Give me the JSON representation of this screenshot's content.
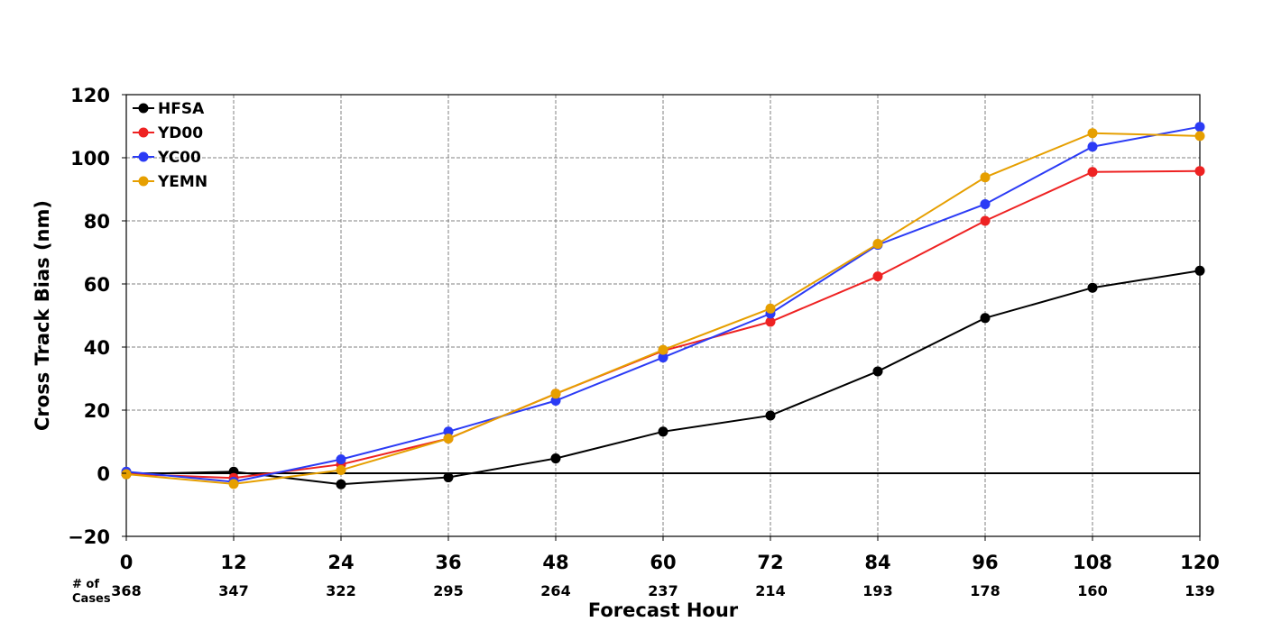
{
  "chart_data": {
    "type": "line",
    "x": [
      0,
      12,
      24,
      36,
      48,
      60,
      72,
      84,
      96,
      108,
      120
    ],
    "xlabel": "Forecast Hour",
    "ylabel": "Cross Track Bias (nm)",
    "xlim": [
      0,
      120
    ],
    "ylim": [
      -20,
      120
    ],
    "yticks": [
      -20,
      0,
      20,
      40,
      60,
      80,
      100,
      120
    ],
    "ytick_labels": [
      "−20",
      "0",
      "20",
      "40",
      "60",
      "80",
      "100",
      "120"
    ],
    "grid": true,
    "legend_position": "top-left",
    "series": [
      {
        "name": "HFSA",
        "color": "#000000",
        "values": [
          -0.3,
          0.5,
          -3.5,
          -1.3,
          4.7,
          13.2,
          18.3,
          32.3,
          49.2,
          58.8,
          64.2
        ]
      },
      {
        "name": "YD00",
        "color": "#ee2222",
        "values": [
          -0.2,
          -1.5,
          2.8,
          11.0,
          25.2,
          38.8,
          48.0,
          62.4,
          80.0,
          95.5,
          95.8
        ]
      },
      {
        "name": "YC00",
        "color": "#2b3bf5",
        "values": [
          0.5,
          -2.7,
          4.4,
          13.2,
          23.0,
          36.7,
          50.6,
          72.4,
          85.3,
          103.5,
          109.8
        ]
      },
      {
        "name": "YEMN",
        "color": "#e69f00",
        "values": [
          -0.3,
          -3.4,
          1.0,
          11.0,
          25.2,
          39.1,
          52.2,
          72.7,
          93.8,
          107.8,
          106.9
        ]
      }
    ],
    "cases_title_line1": "# of",
    "cases_title_line2": "Cases",
    "cases": [
      "368",
      "347",
      "322",
      "295",
      "264",
      "237",
      "214",
      "193",
      "178",
      "160",
      "139"
    ]
  }
}
